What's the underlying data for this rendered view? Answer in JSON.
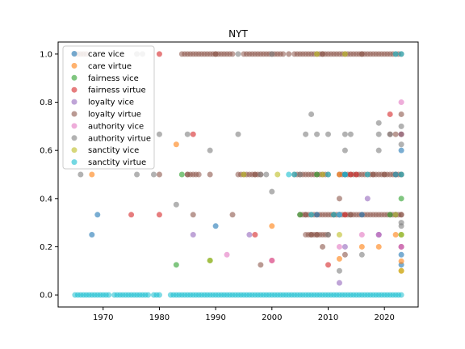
{
  "chart_data": {
    "type": "scatter",
    "title": "NYT",
    "xlabel": "",
    "ylabel": "",
    "xlim": [
      1962,
      2026
    ],
    "ylim": [
      -0.05,
      1.05
    ],
    "xticks": [
      1970,
      1980,
      1990,
      2000,
      2010,
      2020
    ],
    "yticks": [
      0.0,
      0.2,
      0.4,
      0.6,
      0.8,
      1.0
    ],
    "ytick_labels": [
      "0.0",
      "0.2",
      "0.4",
      "0.6",
      "0.8",
      "1.0"
    ],
    "grid": false,
    "legend_position": "top-left",
    "series": [
      {
        "name": "care vice",
        "color": "#1f77b4",
        "points": [
          [
            1969,
            0.333
          ],
          [
            1990,
            0.286
          ],
          [
            2012,
            0.333
          ],
          [
            2016,
            0.333
          ],
          [
            2023,
            0.6
          ],
          [
            2023,
            0.125
          ],
          [
            2023,
            0.167
          ],
          [
            2019,
            0.25
          ],
          [
            2008,
            0.333
          ],
          [
            2013,
            0.5
          ],
          [
            1968,
            0.25
          ],
          [
            2022,
            0.5
          ]
        ]
      },
      {
        "name": "care virtue",
        "color": "#ff7f0e",
        "points": [
          [
            1983,
            0.625
          ],
          [
            2000,
            0.286
          ],
          [
            2016,
            0.2
          ],
          [
            2019,
            0.2
          ],
          [
            2012,
            0.15
          ],
          [
            2022,
            0.25
          ],
          [
            2023,
            0.1
          ],
          [
            2023,
            0.14
          ],
          [
            1968,
            0.5
          ],
          [
            2012,
            0.5
          ]
        ]
      },
      {
        "name": "fairness vice",
        "color": "#2ca02c",
        "points": [
          [
            1983,
            0.125
          ],
          [
            1989,
            0.143
          ],
          [
            2005,
            0.333
          ],
          [
            2021,
            0.333
          ],
          [
            2023,
            0.4
          ],
          [
            2023,
            0.25
          ],
          [
            1984,
            0.5
          ],
          [
            2008,
            0.5
          ]
        ]
      },
      {
        "name": "fairness virtue",
        "color": "#d62728",
        "points": [
          [
            1975,
            0.333
          ],
          [
            1980,
            0.333
          ],
          [
            1986,
            0.667
          ],
          [
            1997,
            0.25
          ],
          [
            2000,
            0.143
          ],
          [
            2010,
            0.125
          ],
          [
            2013,
            0.333
          ],
          [
            2014,
            0.5
          ],
          [
            2015,
            0.5
          ],
          [
            2021,
            0.75
          ],
          [
            2022,
            0.5
          ],
          [
            2023,
            0.2
          ],
          [
            1980,
            1.0
          ]
        ]
      },
      {
        "name": "loyalty vice",
        "color": "#9467bd",
        "points": [
          [
            1986,
            0.25
          ],
          [
            1996,
            0.25
          ],
          [
            2012,
            0.05
          ],
          [
            2013,
            0.2
          ],
          [
            2017,
            0.4
          ],
          [
            2019,
            0.25
          ],
          [
            2023,
            0.2
          ],
          [
            2022,
            0.333
          ],
          [
            2023,
            0.667
          ]
        ]
      },
      {
        "name": "loyalty virtue",
        "color": "#8c564b",
        "points": [
          [
            1980,
            0.5
          ],
          [
            1985,
            0.5
          ],
          [
            1986,
            0.333
          ],
          [
            1989,
            0.5
          ],
          [
            1993,
            0.333
          ],
          [
            1997,
            0.5
          ],
          [
            1998,
            0.125
          ],
          [
            2006,
            0.333
          ],
          [
            2007,
            0.25
          ],
          [
            2008,
            0.25
          ],
          [
            2009,
            0.2
          ],
          [
            2011,
            0.333
          ],
          [
            2012,
            0.4
          ],
          [
            2013,
            0.167
          ],
          [
            2014,
            0.333
          ],
          [
            2018,
            0.5
          ],
          [
            2020,
            0.5
          ],
          [
            2021,
            0.667
          ],
          [
            2022,
            0.667
          ],
          [
            2023,
            0.667
          ],
          [
            2023,
            0.75
          ],
          [
            2023,
            0.333
          ],
          [
            2023,
            0.5
          ],
          [
            1990,
            1.0
          ],
          [
            2003,
            1.0
          ],
          [
            2009,
            1.0
          ],
          [
            2016,
            1.0
          ]
        ]
      },
      {
        "name": "authority vice",
        "color": "#e377c2",
        "points": [
          [
            1992,
            0.167
          ],
          [
            2000,
            0.143
          ],
          [
            2012,
            0.2
          ],
          [
            2016,
            0.25
          ],
          [
            2019,
            0.25
          ],
          [
            2023,
            0.8
          ],
          [
            2023,
            0.2
          ],
          [
            2012,
            0.333
          ]
        ]
      },
      {
        "name": "authority virtue",
        "color": "#7f7f7f",
        "points": [
          [
            1966,
            0.5
          ],
          [
            1976,
            0.5
          ],
          [
            1979,
            0.5
          ],
          [
            1980,
            0.667
          ],
          [
            1983,
            0.375
          ],
          [
            1985,
            0.667
          ],
          [
            1989,
            0.6
          ],
          [
            1994,
            0.667
          ],
          [
            1998,
            0.5
          ],
          [
            1999,
            0.5
          ],
          [
            2000,
            0.429
          ],
          [
            2006,
            0.667
          ],
          [
            2007,
            0.75
          ],
          [
            2008,
            0.667
          ],
          [
            2010,
            0.667
          ],
          [
            2012,
            0.1
          ],
          [
            2013,
            0.6
          ],
          [
            2013,
            0.667
          ],
          [
            2014,
            0.667
          ],
          [
            2016,
            0.167
          ],
          [
            2019,
            0.6
          ],
          [
            2019,
            0.667
          ],
          [
            2019,
            0.714
          ],
          [
            2021,
            0.667
          ],
          [
            2022,
            0.333
          ],
          [
            2023,
            0.3
          ],
          [
            2023,
            0.286
          ],
          [
            2023,
            0.625
          ],
          [
            2023,
            0.7
          ],
          [
            2010,
            0.25
          ],
          [
            2005,
            0.5
          ],
          [
            1976,
            1.0
          ],
          [
            1977,
            1.0
          ],
          [
            1994,
            1.0
          ],
          [
            2000,
            1.0
          ]
        ]
      },
      {
        "name": "sanctity vice",
        "color": "#bcbd22",
        "points": [
          [
            1989,
            0.143
          ],
          [
            1995,
            0.5
          ],
          [
            2001,
            0.5
          ],
          [
            2009,
            0.5
          ],
          [
            2012,
            0.25
          ],
          [
            2023,
            0.25
          ],
          [
            2023,
            0.1
          ],
          [
            2008,
            1.0
          ],
          [
            2013,
            1.0
          ],
          [
            2022,
            0.333
          ]
        ]
      },
      {
        "name": "sanctity virtue",
        "color": "#17becf",
        "points": [
          [
            2003,
            0.5
          ],
          [
            2004,
            0.5
          ],
          [
            2010,
            0.5
          ],
          [
            2013,
            0.5
          ],
          [
            2017,
            0.5
          ],
          [
            2022,
            0.5
          ],
          [
            2023,
            0.5
          ],
          [
            2022,
            1.0
          ],
          [
            2023,
            1.0
          ],
          [
            2007,
            0.333
          ],
          [
            2011,
            0.333
          ],
          [
            2012,
            0.333
          ]
        ]
      }
    ],
    "dense_rows": [
      {
        "y": 0.0,
        "color": "#17becf",
        "ranges": [
          [
            1965,
            1971
          ],
          [
            1972,
            1978
          ],
          [
            1979,
            1980
          ],
          [
            1982,
            2023
          ]
        ]
      },
      {
        "y": 1.0,
        "color": "#8c564b",
        "ranges": [
          [
            1965,
            1967
          ],
          [
            1984,
            1993
          ],
          [
            1995,
            2002
          ],
          [
            2004,
            2023
          ]
        ]
      },
      {
        "y": 0.5,
        "color": "#8c564b",
        "ranges": [
          [
            1985,
            1987
          ],
          [
            1994,
            1998
          ],
          [
            2004,
            2010
          ],
          [
            2012,
            2023
          ]
        ]
      },
      {
        "y": 0.333,
        "color": "#8c564b",
        "ranges": [
          [
            2005,
            2023
          ]
        ]
      },
      {
        "y": 0.25,
        "color": "#8c564b",
        "ranges": [
          [
            2006,
            2010
          ]
        ]
      }
    ]
  }
}
